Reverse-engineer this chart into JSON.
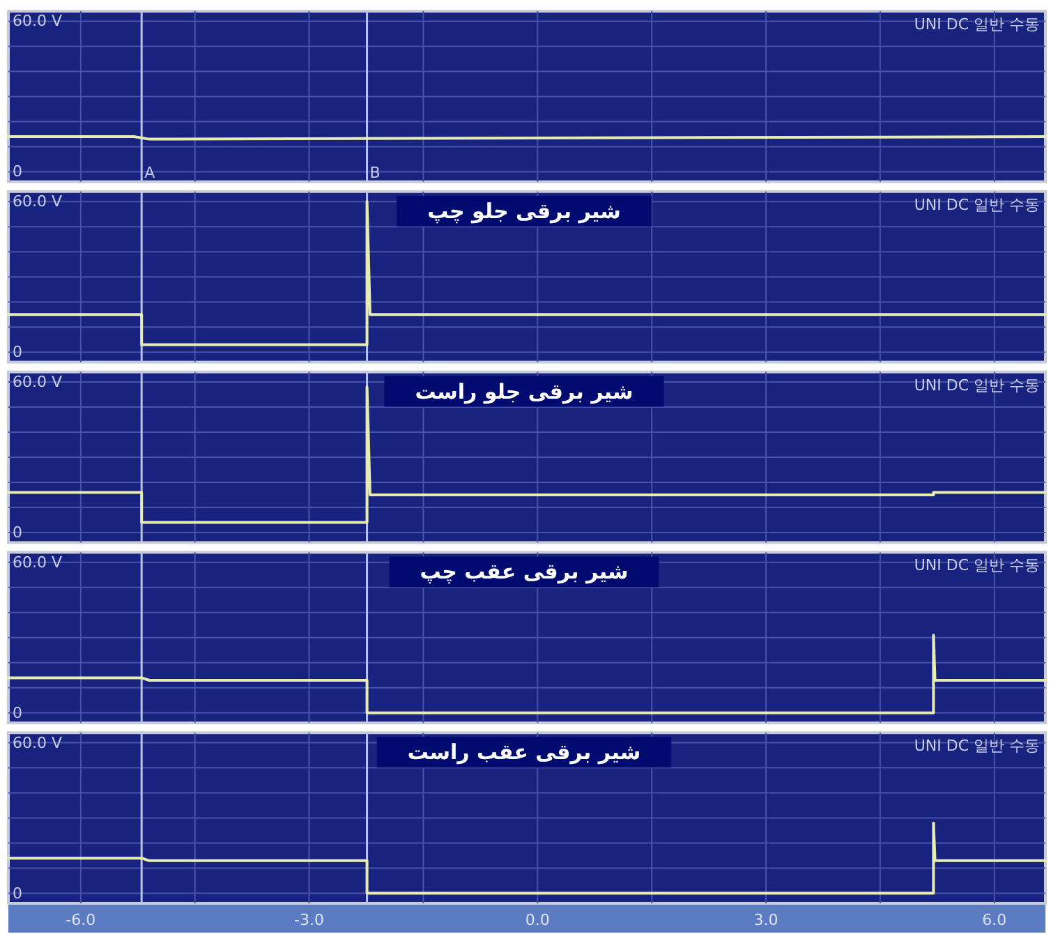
{
  "chart_data": [
    {
      "type": "line",
      "annotations": [
        "UNI DC 일반 수동"
      ],
      "series": [
        {
          "color": "#e6ecb4",
          "x": [
            -6.95,
            -5.3,
            -5.1,
            6.67
          ],
          "values": [
            14,
            14,
            13,
            14
          ]
        }
      ],
      "xlim": [
        -6.95,
        6.67
      ],
      "xticks": [
        -6,
        -4.5,
        -3,
        -1.5,
        0,
        1.5,
        3,
        4.5,
        6
      ],
      "ylim": [
        -4,
        64
      ],
      "yticks": [
        {
          "value": 0,
          "label": "0"
        },
        {
          "value": 10,
          "label": null
        },
        {
          "value": 20,
          "label": null
        },
        {
          "value": 30,
          "label": null
        },
        {
          "value": 40,
          "label": null
        },
        {
          "value": 50,
          "label": null
        },
        {
          "value": 60,
          "label": "60.0 V"
        }
      ],
      "grid": true,
      "tick_labels": "y",
      "ref_lines": [
        {
          "axis": "x",
          "value": -5.2,
          "label": "A",
          "color": "#b8c4f0"
        },
        {
          "axis": "x",
          "value": -2.24,
          "label": "B",
          "color": "#b8c4f0"
        }
      ]
    },
    {
      "type": "line",
      "title": "شیر برقی جلو چپ",
      "annotations": [
        "UNI DC 일반 수동"
      ],
      "series": [
        {
          "color": "#e6ecb4",
          "x": [
            -6.95,
            -5.2,
            -5.2,
            -2.24,
            -2.24,
            -2.2,
            6.67
          ],
          "values": [
            15,
            15,
            3,
            3,
            60,
            15,
            15
          ]
        }
      ],
      "xlim": [
        -6.95,
        6.67
      ],
      "xticks": [
        -6,
        -4.5,
        -3,
        -1.5,
        0,
        1.5,
        3,
        4.5,
        6
      ],
      "ylim": [
        -4,
        64
      ],
      "yticks": [
        {
          "value": 0,
          "label": "0"
        },
        {
          "value": 10,
          "label": null
        },
        {
          "value": 20,
          "label": null
        },
        {
          "value": 30,
          "label": null
        },
        {
          "value": 40,
          "label": null
        },
        {
          "value": 50,
          "label": null
        },
        {
          "value": 60,
          "label": "60.0 V"
        }
      ],
      "grid": true,
      "tick_labels": "y",
      "ref_lines": [
        {
          "axis": "x",
          "value": -5.2,
          "color": "#b8c4f0"
        },
        {
          "axis": "x",
          "value": -2.24,
          "color": "#b8c4f0"
        }
      ]
    },
    {
      "type": "line",
      "title": "شیر برقی جلو راست",
      "annotations": [
        "UNI DC 일반 수동"
      ],
      "series": [
        {
          "color": "#e6ecb4",
          "x": [
            -6.95,
            -5.2,
            -5.2,
            -2.24,
            -2.24,
            -2.2,
            5.2,
            5.2,
            6.67
          ],
          "values": [
            16,
            16,
            4,
            4,
            58,
            15,
            15,
            16,
            16
          ]
        }
      ],
      "xlim": [
        -6.95,
        6.67
      ],
      "xticks": [
        -6,
        -4.5,
        -3,
        -1.5,
        0,
        1.5,
        3,
        4.5,
        6
      ],
      "ylim": [
        -4,
        64
      ],
      "yticks": [
        {
          "value": 0,
          "label": "0"
        },
        {
          "value": 10,
          "label": null
        },
        {
          "value": 20,
          "label": null
        },
        {
          "value": 30,
          "label": null
        },
        {
          "value": 40,
          "label": null
        },
        {
          "value": 50,
          "label": null
        },
        {
          "value": 60,
          "label": "60.0 V"
        }
      ],
      "grid": true,
      "tick_labels": "y",
      "ref_lines": [
        {
          "axis": "x",
          "value": -5.2,
          "color": "#b8c4f0"
        },
        {
          "axis": "x",
          "value": -2.24,
          "color": "#b8c4f0"
        }
      ]
    },
    {
      "type": "line",
      "title": "شیر برقی عقب چپ",
      "annotations": [
        "UNI DC 일반 수동"
      ],
      "series": [
        {
          "color": "#e6ecb4",
          "x": [
            -6.95,
            -5.2,
            -5.1,
            -2.24,
            -2.24,
            5.2,
            5.2,
            5.22,
            6.67
          ],
          "values": [
            14,
            14,
            13,
            13,
            0,
            0,
            31,
            13,
            13
          ]
        }
      ],
      "xlim": [
        -6.95,
        6.67
      ],
      "xticks": [
        -6,
        -4.5,
        -3,
        -1.5,
        0,
        1.5,
        3,
        4.5,
        6
      ],
      "ylim": [
        -4,
        64
      ],
      "yticks": [
        {
          "value": 0,
          "label": "0"
        },
        {
          "value": 10,
          "label": null
        },
        {
          "value": 20,
          "label": null
        },
        {
          "value": 30,
          "label": null
        },
        {
          "value": 40,
          "label": null
        },
        {
          "value": 50,
          "label": null
        },
        {
          "value": 60,
          "label": "60.0 V"
        }
      ],
      "grid": true,
      "tick_labels": "y",
      "ref_lines": [
        {
          "axis": "x",
          "value": -5.2,
          "color": "#b8c4f0"
        },
        {
          "axis": "x",
          "value": -2.24,
          "color": "#b8c4f0"
        }
      ]
    },
    {
      "type": "line",
      "title": "شیر برقی عقب راست",
      "annotations": [
        "UNI DC 일반 수동"
      ],
      "series": [
        {
          "color": "#e6ecb4",
          "x": [
            -6.95,
            -5.2,
            -5.1,
            -2.24,
            -2.24,
            5.2,
            5.2,
            5.22,
            6.67
          ],
          "values": [
            14,
            14,
            13,
            13,
            0,
            0,
            28,
            13,
            13
          ]
        }
      ],
      "xlim": [
        -6.95,
        6.67
      ],
      "xticks": [
        {
          "value": -6,
          "label": "-6.0"
        },
        {
          "value": -4.5,
          "label": null
        },
        {
          "value": -3,
          "label": "-3.0"
        },
        {
          "value": -1.5,
          "label": null
        },
        {
          "value": 0,
          "label": "0.0"
        },
        {
          "value": 1.5,
          "label": null
        },
        {
          "value": 3,
          "label": "3.0"
        },
        {
          "value": 4.5,
          "label": null
        },
        {
          "value": 6,
          "label": "6.0"
        }
      ],
      "ylim": [
        -4,
        64
      ],
      "yticks": [
        {
          "value": 0,
          "label": "0"
        },
        {
          "value": 10,
          "label": null
        },
        {
          "value": 20,
          "label": null
        },
        {
          "value": 30,
          "label": null
        },
        {
          "value": 40,
          "label": null
        },
        {
          "value": 50,
          "label": null
        },
        {
          "value": 60,
          "label": "60.0 V"
        }
      ],
      "grid": true,
      "ref_lines": [
        {
          "axis": "x",
          "value": -5.2,
          "color": "#b8c4f0"
        },
        {
          "axis": "x",
          "value": -2.24,
          "color": "#b8c4f0"
        }
      ]
    }
  ]
}
